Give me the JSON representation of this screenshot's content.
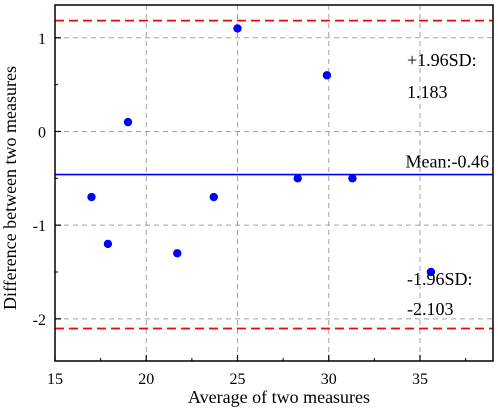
{
  "chart_data": {
    "type": "scatter",
    "title": "",
    "xlabel": "Average of two measures",
    "ylabel": "Difference between two measures",
    "xlim": [
      15,
      39
    ],
    "ylim": [
      -2.45,
      1.35
    ],
    "grid": true,
    "x_ticks": [
      15,
      20,
      25,
      30,
      35
    ],
    "x_tick_labels": [
      "15",
      "20",
      "25",
      "30",
      "35"
    ],
    "y_ticks": [
      -2,
      -1,
      0,
      1
    ],
    "y_tick_labels": [
      "-2",
      "-1",
      "0",
      "1"
    ],
    "series": [
      {
        "x": [
          17.0,
          17.9,
          19.0,
          21.7,
          23.7,
          25.0,
          28.3,
          29.9,
          31.3,
          35.6
        ],
        "y": [
          -0.7,
          -1.2,
          0.1,
          -1.3,
          -0.7,
          1.1,
          -0.5,
          0.6,
          -0.5,
          -1.5
        ],
        "color": "#0000ff"
      }
    ],
    "mean_line": {
      "value": -0.46,
      "label": "Mean:-0.46",
      "color": "#0000ff"
    },
    "upper_limit": {
      "value": 1.183,
      "label_line1": "+1.96SD:",
      "label_line2": "1.183",
      "color": "#ff0000"
    },
    "lower_limit": {
      "value": -2.103,
      "label_line1": "-1.96SD:",
      "label_line2": "-2.103",
      "color": "#ff0000"
    },
    "grid_color": "#a0a0a0",
    "axis_color": "#000000",
    "background": "#ffffff"
  }
}
